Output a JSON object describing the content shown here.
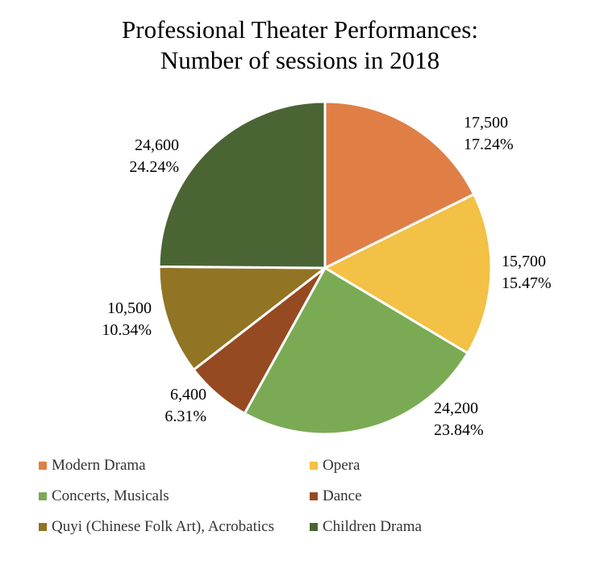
{
  "title": [
    "Professional Theater Performances:",
    "Number of sessions in 2018"
  ],
  "chart_data": {
    "type": "pie",
    "title": "Professional Theater Performances: Number of sessions in 2018",
    "start_angle_deg": 90,
    "direction": "clockwise",
    "legend_position": "bottom",
    "slices": [
      {
        "name": "Modern Drama",
        "value": 17500,
        "value_label": "17,500",
        "percent_label": "17.24%",
        "color": "#E07F45"
      },
      {
        "name": "Opera",
        "value": 15700,
        "value_label": "15,700",
        "percent_label": "15.47%",
        "color": "#F2C145"
      },
      {
        "name": "Concerts, Musicals",
        "value": 24200,
        "value_label": "24,200",
        "percent_label": "23.84%",
        "color": "#7AAB54"
      },
      {
        "name": "Dance",
        "value": 6400,
        "value_label": "6,400",
        "percent_label": "6.31%",
        "color": "#964A22"
      },
      {
        "name": "Quyi (Chinese Folk Art), Acrobatics",
        "value": 10500,
        "value_label": "10,500",
        "percent_label": "10.34%",
        "color": "#917424"
      },
      {
        "name": "Children Drama",
        "value": 24600,
        "value_label": "24,600",
        "percent_label": "24.24%",
        "color": "#4A6533"
      }
    ]
  }
}
